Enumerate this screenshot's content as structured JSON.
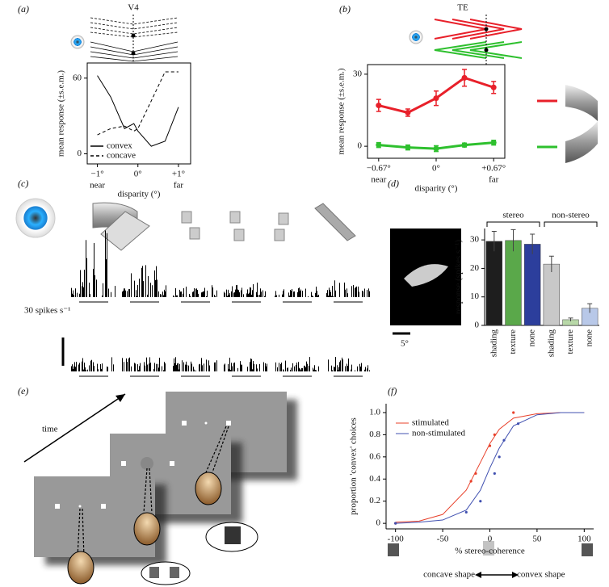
{
  "chart_data": [
    {
      "type": "line",
      "panel": "(a)",
      "title": "V4",
      "xlabel": "disparity (°)",
      "ylabel": "mean response (±s.e.m.)",
      "x": [
        -1,
        -0.67,
        -0.33,
        -0.1,
        0,
        0.33,
        0.67,
        1
      ],
      "series": [
        {
          "name": "convex",
          "color": "#000000",
          "dash": false,
          "values": [
            62,
            45,
            20,
            24,
            18,
            6,
            10,
            37
          ]
        },
        {
          "name": "concave",
          "color": "#000000",
          "dash": true,
          "values": [
            15,
            20,
            22,
            18,
            20,
            42,
            65,
            65
          ]
        }
      ],
      "xlim": [
        -1.25,
        1.3
      ],
      "ylim": [
        -8,
        72
      ],
      "xticks": [
        {
          "value": -1,
          "label": "−1°"
        },
        {
          "value": 0,
          "label": "0°"
        },
        {
          "value": 1,
          "label": "+1°"
        }
      ],
      "yticks": [
        0,
        60
      ],
      "annotations": [
        "near",
        "far"
      ]
    },
    {
      "type": "line",
      "panel": "(b)",
      "title": "TE",
      "xlabel": "disparity (°)",
      "ylabel": "mean response (±s.e.m.)",
      "x": [
        -0.67,
        -0.33,
        0,
        0.33,
        0.67
      ],
      "marker": "circle",
      "series": [
        {
          "color": "#e8202a",
          "values": [
            17,
            14,
            20,
            28.5,
            24.5
          ],
          "errors": [
            2.5,
            1.5,
            3,
            3.5,
            2.5
          ]
        },
        {
          "color": "#2ec02e",
          "values": [
            0.5,
            -0.5,
            -1,
            0.5,
            1.5
          ],
          "errors": [
            1,
            1,
            1.2,
            0.8,
            1
          ]
        }
      ],
      "xlim": [
        -0.8,
        0.8
      ],
      "ylim": [
        -5,
        34
      ],
      "xticks": [
        {
          "value": -0.67,
          "label": "−0.67°"
        },
        {
          "value": 0,
          "label": "0°"
        },
        {
          "value": 0.67,
          "label": "+0.67°"
        }
      ],
      "yticks": [
        0,
        30
      ],
      "annotations": [
        "near",
        "far"
      ]
    },
    {
      "type": "bar",
      "panel": "(d)",
      "ylabel": "response (spikes s⁻¹)",
      "categories": [
        "shading",
        "texture",
        "none",
        "shading",
        "texture",
        "none"
      ],
      "values": [
        29.5,
        29.8,
        28.5,
        21.5,
        2,
        6
      ],
      "errors": [
        3.5,
        3.8,
        3.5,
        2.8,
        0.6,
        1.6
      ],
      "colors": [
        "#1e1e1e",
        "#5aa84a",
        "#2c3e9c",
        "#c8c8c8",
        "#b8d8a8",
        "#b8c8e8"
      ],
      "groups": [
        "stereo",
        "non-stereo"
      ],
      "ylim": [
        0,
        34
      ],
      "yticks": [
        0,
        10,
        20,
        30
      ]
    },
    {
      "type": "line",
      "panel": "(f)",
      "xlabel": "% stereo-coherence",
      "ylabel": "proportion 'convex' choices",
      "series": [
        {
          "name": "stimulated",
          "color": "#e8402a",
          "x": [
            -100,
            -75,
            -50,
            -25,
            -10,
            0,
            10,
            25,
            50,
            75,
            100
          ],
          "values": [
            0.01,
            0.02,
            0.08,
            0.3,
            0.55,
            0.72,
            0.85,
            0.95,
            0.99,
            1,
            1
          ]
        },
        {
          "name": "non-stimulated",
          "color": "#4050b0",
          "x": [
            -100,
            -75,
            -50,
            -25,
            -10,
            0,
            10,
            25,
            50,
            75,
            100
          ],
          "values": [
            0,
            0.01,
            0.03,
            0.12,
            0.3,
            0.5,
            0.68,
            0.88,
            0.98,
            1,
            1
          ]
        },
        {
          "color": "#e8402a",
          "style": "points",
          "x": [
            -100,
            -20,
            -15,
            0,
            5,
            25
          ],
          "values": [
            0,
            0.38,
            0.45,
            0.7,
            0.8,
            1
          ]
        },
        {
          "color": "#4050b0",
          "style": "points",
          "x": [
            -100,
            -25,
            -10,
            5,
            10,
            15,
            30
          ],
          "values": [
            0,
            0.1,
            0.2,
            0.45,
            0.6,
            0.75,
            0.9
          ]
        }
      ],
      "xlim": [
        -110,
        110
      ],
      "ylim": [
        -0.05,
        1.08
      ],
      "xticks": [
        -100,
        -50,
        0,
        50,
        100
      ],
      "yticks": [
        0,
        0.2,
        0.4,
        0.6,
        0.8,
        {
          "value": 1,
          "label": "1.0"
        }
      ],
      "annotations": [
        "concave shape",
        "convex shape"
      ]
    }
  ],
  "panels": {
    "c": {
      "label": "(c)",
      "scale": "30 spikes s⁻¹"
    },
    "d": {
      "scale": "5°"
    },
    "e": {
      "label": "(e)",
      "annotation": "time"
    }
  }
}
